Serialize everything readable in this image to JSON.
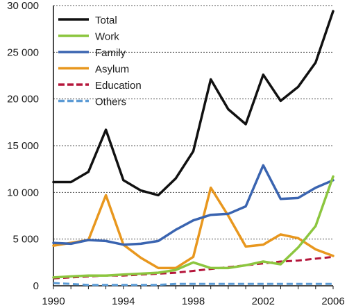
{
  "chart_data": {
    "type": "line",
    "title": "",
    "xlabel": "",
    "ylabel": "",
    "x": [
      1990,
      1991,
      1992,
      1993,
      1994,
      1995,
      1996,
      1997,
      1998,
      1999,
      2000,
      2001,
      2002,
      2003,
      2004,
      2005,
      2006
    ],
    "xlim": [
      1990,
      2006
    ],
    "ylim": [
      0,
      30000
    ],
    "x_ticks": [
      "1990",
      "1994",
      "1998",
      "2002",
      "2006"
    ],
    "y_ticks": [
      "0",
      "5 000",
      "10 000",
      "15 000",
      "20 000",
      "25 000",
      "30 000"
    ],
    "grid": "horizontal dotted",
    "legend_position": "top-left",
    "series": [
      {
        "name": "Total",
        "color": "#111111",
        "dash": "solid",
        "values": [
          11100,
          11100,
          12200,
          16700,
          11300,
          10200,
          9700,
          11500,
          14400,
          22100,
          18900,
          17300,
          22600,
          19800,
          21300,
          23900,
          29400
        ]
      },
      {
        "name": "Work",
        "color": "#8cc63f",
        "dash": "solid",
        "values": [
          900,
          1000,
          1100,
          1100,
          1200,
          1300,
          1400,
          1700,
          2500,
          1900,
          1900,
          2200,
          2600,
          2300,
          4100,
          6400,
          11700
        ]
      },
      {
        "name": "Family",
        "color": "#3a64b0",
        "dash": "solid",
        "values": [
          4600,
          4500,
          4900,
          4800,
          4400,
          4500,
          4800,
          6000,
          7000,
          7600,
          7700,
          8500,
          12900,
          9300,
          9400,
          10500,
          11300
        ]
      },
      {
        "name": "Asylum",
        "color": "#e8971e",
        "dash": "solid",
        "values": [
          4300,
          4600,
          4900,
          9700,
          4400,
          3000,
          1900,
          1900,
          3100,
          10500,
          7500,
          4200,
          4400,
          5500,
          5100,
          3900,
          3200
        ]
      },
      {
        "name": "Education",
        "color": "#b5163b",
        "dash": "dashed",
        "values": [
          800,
          900,
          1000,
          1100,
          1100,
          1200,
          1300,
          1400,
          1600,
          1800,
          2000,
          2200,
          2400,
          2600,
          2700,
          2900,
          3100
        ]
      },
      {
        "name": "Others",
        "color": "#5b9bd5",
        "dash": "dashed",
        "values": [
          300,
          200,
          100,
          100,
          100,
          100,
          100,
          200,
          200,
          200,
          200,
          200,
          200,
          200,
          200,
          200,
          200
        ]
      }
    ]
  }
}
